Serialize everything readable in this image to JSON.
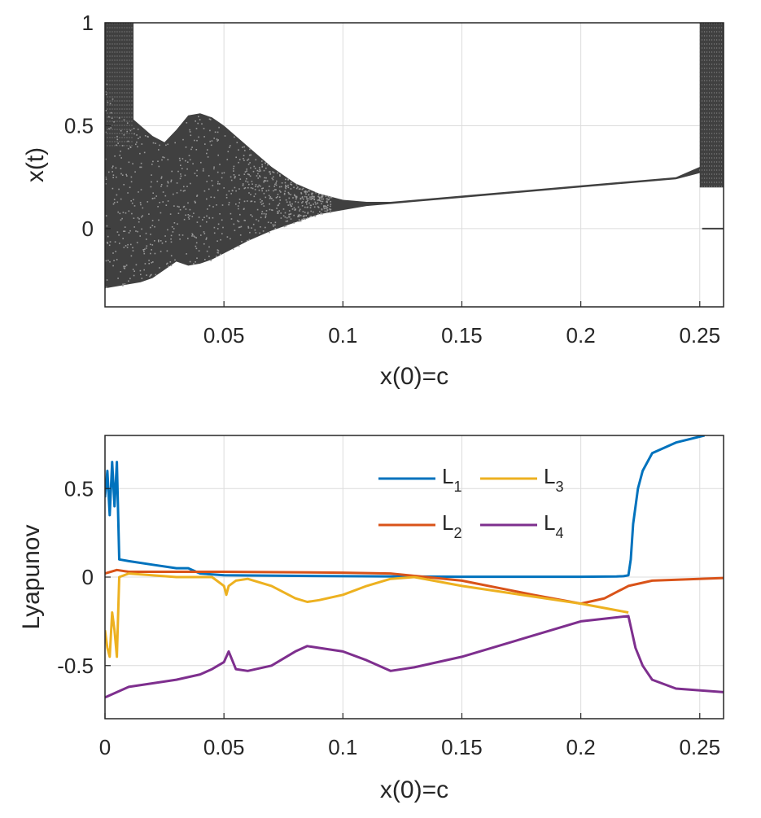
{
  "chart_data": [
    {
      "type": "scatter",
      "title": "",
      "xlabel": "x(0)=c",
      "ylabel": "x(t)",
      "xlim": [
        0,
        0.26
      ],
      "ylim": [
        -0.38,
        1.0
      ],
      "xticks": [
        "0.05",
        "0.1",
        "0.15",
        "0.2",
        "0.25"
      ],
      "xtick_values": [
        0.05,
        0.1,
        0.15,
        0.2,
        0.25
      ],
      "yticks": [
        "0",
        "0.5",
        "1"
      ],
      "ytick_values": [
        0,
        0.5,
        1
      ],
      "grid": true,
      "point_color": "#404040",
      "envelope": {
        "x": [
          0.0,
          0.005,
          0.01,
          0.015,
          0.02,
          0.025,
          0.03,
          0.035,
          0.04,
          0.045,
          0.05,
          0.06,
          0.07,
          0.08,
          0.09,
          0.1,
          0.11,
          0.12,
          0.13,
          0.15,
          0.2,
          0.24,
          0.25,
          0.26
        ],
        "upper": [
          0.75,
          0.65,
          0.55,
          0.5,
          0.45,
          0.42,
          0.48,
          0.55,
          0.56,
          0.54,
          0.5,
          0.4,
          0.3,
          0.22,
          0.17,
          0.14,
          0.13,
          0.13,
          0.14,
          0.16,
          0.21,
          0.25,
          0.3,
          0.5
        ],
        "lower": [
          -0.29,
          -0.28,
          -0.27,
          -0.26,
          -0.24,
          -0.2,
          -0.16,
          -0.18,
          -0.17,
          -0.15,
          -0.12,
          -0.06,
          -0.01,
          0.03,
          0.07,
          0.09,
          0.11,
          0.12,
          0.13,
          0.15,
          0.2,
          0.24,
          0.27,
          0.26
        ]
      },
      "bands": [
        {
          "x": [
            0.0,
            0.012
          ],
          "y": [
            0.4,
            1.0
          ]
        },
        {
          "x": [
            0.25,
            0.26
          ],
          "y": [
            0.2,
            1.0
          ]
        }
      ],
      "isolated_segments": [
        {
          "x": [
            0.251,
            0.26
          ],
          "y": 0.0
        }
      ]
    },
    {
      "type": "line",
      "title": "",
      "xlabel": "x(0)=c",
      "ylabel": "Lyapunov",
      "xlim": [
        0,
        0.26
      ],
      "ylim": [
        -0.8,
        0.8
      ],
      "xticks": [
        "0",
        "0.05",
        "0.1",
        "0.15",
        "0.2",
        "0.25"
      ],
      "xtick_values": [
        0,
        0.05,
        0.1,
        0.15,
        0.2,
        0.25
      ],
      "yticks": [
        "-0.5",
        "0",
        "0.5"
      ],
      "ytick_values": [
        -0.5,
        0,
        0.5
      ],
      "grid": true,
      "legend_position": "top-right",
      "series": [
        {
          "name": "L1",
          "name_base": "L",
          "name_sub": "1",
          "color": "#0072BD",
          "x": [
            0,
            0.001,
            0.002,
            0.003,
            0.004,
            0.005,
            0.006,
            0.01,
            0.02,
            0.03,
            0.035,
            0.04,
            0.05,
            0.1,
            0.15,
            0.2,
            0.215,
            0.218,
            0.22,
            0.221,
            0.222,
            0.224,
            0.226,
            0.23,
            0.24,
            0.252
          ],
          "y": [
            0.45,
            0.6,
            0.35,
            0.65,
            0.4,
            0.65,
            0.1,
            0.09,
            0.07,
            0.05,
            0.05,
            0.02,
            0.01,
            0.005,
            0.002,
            0.002,
            0.003,
            0.005,
            0.01,
            0.1,
            0.3,
            0.5,
            0.6,
            0.7,
            0.76,
            0.8
          ]
        },
        {
          "name": "L2",
          "name_base": "L",
          "name_sub": "2",
          "color": "#D95319",
          "x": [
            0,
            0.005,
            0.01,
            0.05,
            0.1,
            0.12,
            0.15,
            0.18,
            0.2,
            0.21,
            0.22,
            0.23,
            0.26
          ],
          "y": [
            0.02,
            0.04,
            0.03,
            0.03,
            0.025,
            0.02,
            -0.02,
            -0.1,
            -0.15,
            -0.12,
            -0.05,
            -0.02,
            -0.005
          ]
        },
        {
          "name": "L3",
          "name_base": "L",
          "name_sub": "3",
          "color": "#EDB120",
          "x": [
            0,
            0.001,
            0.002,
            0.003,
            0.004,
            0.005,
            0.006,
            0.01,
            0.03,
            0.045,
            0.05,
            0.051,
            0.052,
            0.055,
            0.06,
            0.07,
            0.08,
            0.085,
            0.09,
            0.1,
            0.11,
            0.12,
            0.13,
            0.15,
            0.2,
            0.22
          ],
          "y": [
            -0.3,
            -0.4,
            -0.45,
            -0.2,
            -0.3,
            -0.45,
            0.0,
            0.02,
            0.0,
            0.0,
            -0.05,
            -0.1,
            -0.05,
            -0.02,
            -0.01,
            -0.05,
            -0.12,
            -0.14,
            -0.13,
            -0.1,
            -0.05,
            -0.01,
            0.0,
            -0.05,
            -0.15,
            -0.2
          ]
        },
        {
          "name": "L4",
          "name_base": "L",
          "name_sub": "4",
          "color": "#7E2F8E",
          "x": [
            0,
            0.005,
            0.01,
            0.02,
            0.03,
            0.04,
            0.045,
            0.05,
            0.052,
            0.055,
            0.06,
            0.07,
            0.08,
            0.085,
            0.09,
            0.1,
            0.11,
            0.12,
            0.13,
            0.15,
            0.2,
            0.22,
            0.223,
            0.226,
            0.23,
            0.24,
            0.26
          ],
          "y": [
            -0.68,
            -0.65,
            -0.62,
            -0.6,
            -0.58,
            -0.55,
            -0.52,
            -0.48,
            -0.42,
            -0.52,
            -0.53,
            -0.5,
            -0.42,
            -0.39,
            -0.4,
            -0.42,
            -0.47,
            -0.53,
            -0.51,
            -0.45,
            -0.25,
            -0.22,
            -0.4,
            -0.5,
            -0.58,
            -0.63,
            -0.65
          ]
        }
      ]
    }
  ]
}
